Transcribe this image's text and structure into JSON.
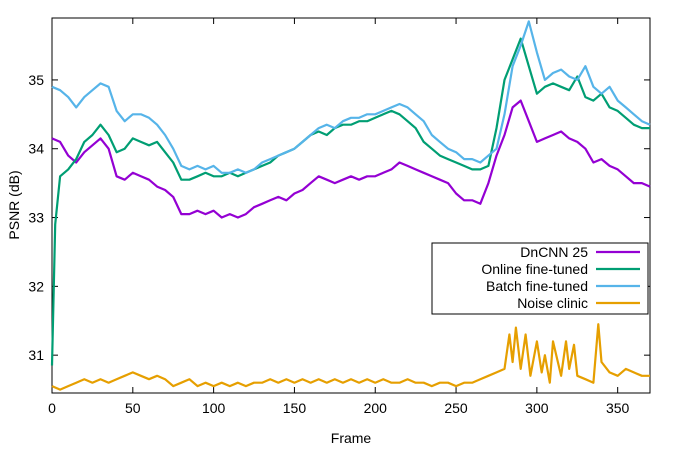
{
  "chart_data": {
    "type": "line",
    "xlabel": "Frame",
    "ylabel": "PSNR (dB)",
    "xlim": [
      0,
      370
    ],
    "ylim": [
      30.45,
      35.9
    ],
    "xticks": [
      0,
      50,
      100,
      150,
      200,
      250,
      300,
      350
    ],
    "yticks": [
      31,
      32,
      33,
      34,
      35
    ],
    "grid": false,
    "legend_position": "right-center",
    "series": [
      {
        "name": "DnCNN 25",
        "color": "#9400d3",
        "x": [
          0,
          5,
          10,
          15,
          20,
          25,
          30,
          35,
          40,
          45,
          50,
          55,
          60,
          65,
          70,
          75,
          80,
          85,
          90,
          95,
          100,
          105,
          110,
          115,
          120,
          125,
          130,
          135,
          140,
          145,
          150,
          155,
          160,
          165,
          170,
          175,
          180,
          185,
          190,
          195,
          200,
          205,
          210,
          215,
          220,
          225,
          230,
          235,
          240,
          245,
          250,
          255,
          260,
          265,
          270,
          275,
          280,
          285,
          290,
          295,
          300,
          305,
          310,
          315,
          320,
          325,
          330,
          335,
          340,
          345,
          350,
          355,
          360,
          365,
          370
        ],
        "values": [
          34.15,
          34.1,
          33.9,
          33.8,
          33.95,
          34.05,
          34.15,
          34.0,
          33.6,
          33.55,
          33.65,
          33.6,
          33.55,
          33.45,
          33.4,
          33.3,
          33.05,
          33.05,
          33.1,
          33.05,
          33.1,
          33.0,
          33.05,
          33.0,
          33.05,
          33.15,
          33.2,
          33.25,
          33.3,
          33.25,
          33.35,
          33.4,
          33.5,
          33.6,
          33.55,
          33.5,
          33.55,
          33.6,
          33.55,
          33.6,
          33.6,
          33.65,
          33.7,
          33.8,
          33.75,
          33.7,
          33.65,
          33.6,
          33.55,
          33.5,
          33.35,
          33.25,
          33.25,
          33.2,
          33.5,
          33.9,
          34.2,
          34.6,
          34.7,
          34.4,
          34.1,
          34.15,
          34.2,
          34.25,
          34.15,
          34.1,
          34.0,
          33.8,
          33.85,
          33.75,
          33.7,
          33.6,
          33.5,
          33.5,
          33.45
        ]
      },
      {
        "name": "Online fine-tuned",
        "color": "#009e73",
        "x": [
          0,
          2,
          5,
          10,
          15,
          20,
          25,
          30,
          35,
          40,
          45,
          50,
          55,
          60,
          65,
          70,
          75,
          80,
          85,
          90,
          95,
          100,
          105,
          110,
          115,
          120,
          125,
          130,
          135,
          140,
          145,
          150,
          155,
          160,
          165,
          170,
          175,
          180,
          185,
          190,
          195,
          200,
          205,
          210,
          215,
          220,
          225,
          230,
          235,
          240,
          245,
          250,
          255,
          260,
          265,
          270,
          275,
          280,
          285,
          290,
          295,
          300,
          305,
          310,
          315,
          320,
          325,
          330,
          335,
          340,
          345,
          350,
          355,
          360,
          365,
          370
        ],
        "values": [
          30.85,
          32.9,
          33.6,
          33.7,
          33.85,
          34.1,
          34.2,
          34.35,
          34.2,
          33.95,
          34.0,
          34.15,
          34.1,
          34.05,
          34.1,
          33.95,
          33.8,
          33.55,
          33.55,
          33.6,
          33.65,
          33.6,
          33.6,
          33.65,
          33.6,
          33.65,
          33.7,
          33.75,
          33.8,
          33.9,
          33.95,
          34.0,
          34.1,
          34.2,
          34.25,
          34.2,
          34.3,
          34.35,
          34.35,
          34.4,
          34.4,
          34.45,
          34.5,
          34.55,
          34.5,
          34.4,
          34.3,
          34.1,
          34.0,
          33.9,
          33.85,
          33.8,
          33.75,
          33.7,
          33.7,
          33.75,
          34.3,
          35.0,
          35.3,
          35.6,
          35.2,
          34.8,
          34.9,
          34.95,
          34.9,
          34.85,
          35.05,
          34.75,
          34.7,
          34.8,
          34.6,
          34.55,
          34.45,
          34.35,
          34.3,
          34.3
        ]
      },
      {
        "name": "Batch fine-tuned",
        "color": "#56b4e9",
        "x": [
          0,
          5,
          10,
          15,
          20,
          25,
          30,
          35,
          40,
          45,
          50,
          55,
          60,
          65,
          70,
          75,
          80,
          85,
          90,
          95,
          100,
          105,
          110,
          115,
          120,
          125,
          130,
          135,
          140,
          145,
          150,
          155,
          160,
          165,
          170,
          175,
          180,
          185,
          190,
          195,
          200,
          205,
          210,
          215,
          220,
          225,
          230,
          235,
          240,
          245,
          250,
          255,
          260,
          265,
          270,
          275,
          280,
          285,
          290,
          295,
          300,
          305,
          310,
          315,
          320,
          325,
          330,
          335,
          340,
          345,
          350,
          355,
          360,
          365,
          370
        ],
        "values": [
          34.9,
          34.85,
          34.75,
          34.6,
          34.75,
          34.85,
          34.95,
          34.9,
          34.55,
          34.4,
          34.5,
          34.5,
          34.45,
          34.35,
          34.2,
          34.0,
          33.75,
          33.7,
          33.75,
          33.7,
          33.75,
          33.65,
          33.65,
          33.7,
          33.65,
          33.7,
          33.8,
          33.85,
          33.9,
          33.95,
          34.0,
          34.1,
          34.2,
          34.3,
          34.35,
          34.3,
          34.4,
          34.45,
          34.45,
          34.5,
          34.5,
          34.55,
          34.6,
          34.65,
          34.6,
          34.5,
          34.4,
          34.2,
          34.1,
          34.0,
          33.95,
          33.85,
          33.85,
          33.8,
          33.9,
          34.0,
          34.5,
          35.2,
          35.5,
          35.85,
          35.4,
          35.0,
          35.1,
          35.15,
          35.05,
          35.0,
          35.2,
          34.9,
          34.8,
          34.9,
          34.7,
          34.6,
          34.5,
          34.4,
          34.35
        ]
      },
      {
        "name": "Noise clinic",
        "color": "#e69f00",
        "x": [
          0,
          5,
          10,
          15,
          20,
          25,
          30,
          35,
          40,
          45,
          50,
          55,
          60,
          65,
          70,
          75,
          80,
          85,
          90,
          95,
          100,
          105,
          110,
          115,
          120,
          125,
          130,
          135,
          140,
          145,
          150,
          155,
          160,
          165,
          170,
          175,
          180,
          185,
          190,
          195,
          200,
          205,
          210,
          215,
          220,
          225,
          230,
          235,
          240,
          245,
          250,
          255,
          260,
          265,
          270,
          275,
          280,
          283,
          285,
          287,
          290,
          293,
          296,
          300,
          303,
          305,
          308,
          310,
          315,
          318,
          320,
          323,
          325,
          330,
          335,
          338,
          340,
          345,
          350,
          355,
          360,
          365,
          370
        ],
        "values": [
          30.55,
          30.5,
          30.55,
          30.6,
          30.65,
          30.6,
          30.65,
          30.6,
          30.65,
          30.7,
          30.75,
          30.7,
          30.65,
          30.7,
          30.65,
          30.55,
          30.6,
          30.65,
          30.55,
          30.6,
          30.55,
          30.6,
          30.55,
          30.6,
          30.55,
          30.6,
          30.6,
          30.65,
          30.6,
          30.65,
          30.6,
          30.65,
          30.6,
          30.65,
          30.6,
          30.65,
          30.6,
          30.65,
          30.6,
          30.65,
          30.6,
          30.65,
          30.6,
          30.6,
          30.65,
          30.6,
          30.6,
          30.55,
          30.6,
          30.6,
          30.55,
          30.6,
          30.6,
          30.65,
          30.7,
          30.75,
          30.8,
          31.3,
          30.9,
          31.4,
          30.8,
          31.3,
          30.7,
          31.2,
          30.75,
          31.0,
          30.6,
          31.2,
          30.7,
          31.2,
          30.8,
          31.15,
          30.7,
          30.65,
          30.6,
          31.45,
          30.9,
          30.75,
          30.7,
          30.8,
          30.75,
          30.7,
          30.7
        ]
      }
    ]
  }
}
